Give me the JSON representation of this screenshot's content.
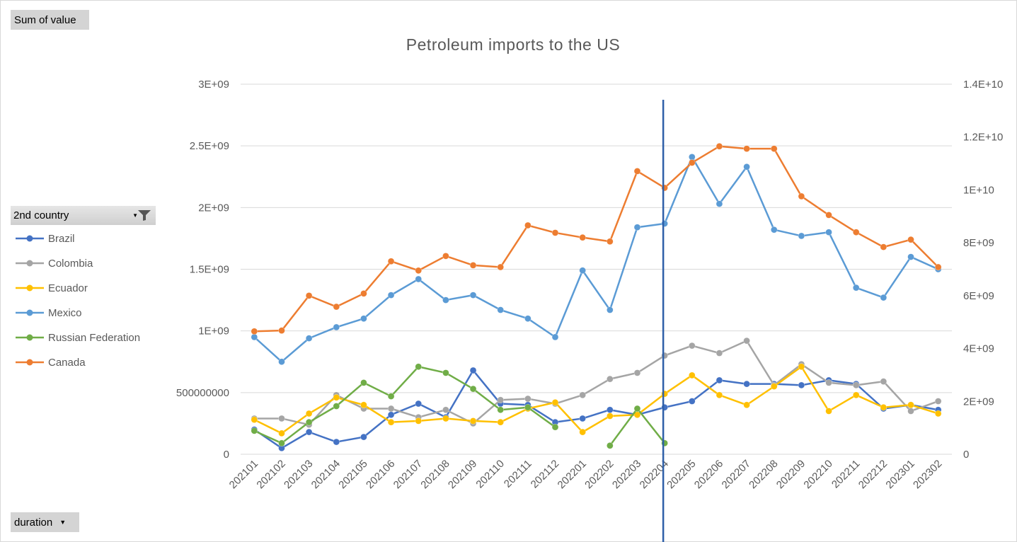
{
  "pivot": {
    "values_field": "Sum of value",
    "legend_field": "2nd country",
    "axis_field": "duration"
  },
  "icons": {
    "filter": "filter-icon",
    "dropdown": "dropdown-arrow-icon"
  },
  "chart_data": {
    "type": "line",
    "title": "Petroleum imports to the US",
    "xlabel": "",
    "ylabel": "",
    "grid": true,
    "legend_position": "left",
    "categories": [
      "202101",
      "202102",
      "202103",
      "202104",
      "202105",
      "202106",
      "202107",
      "202108",
      "202109",
      "202110",
      "202111",
      "202112",
      "202201",
      "202202",
      "202203",
      "202204",
      "202205",
      "202206",
      "202207",
      "202208",
      "202209",
      "202210",
      "202211",
      "202212",
      "202301",
      "202302"
    ],
    "y_axis": {
      "min": 0,
      "max": 3000000000,
      "ticks": [
        "0",
        "500000000",
        "1E+09",
        "1.5E+09",
        "2E+09",
        "2.5E+09",
        "3E+09"
      ]
    },
    "y2_axis": {
      "min": 0,
      "max": 14000000000,
      "ticks": [
        "0",
        "2E+09",
        "4E+09",
        "6E+09",
        "8E+09",
        "1E+10",
        "1.2E+10",
        "1.4E+10"
      ]
    },
    "vertical_marker_category": "202204",
    "series": [
      {
        "name": "Brazil",
        "color": "#4472c4",
        "axis": "primary",
        "values": [
          200000000,
          50000000,
          180000000,
          100000000,
          140000000,
          320000000,
          410000000,
          300000000,
          680000000,
          410000000,
          400000000,
          260000000,
          290000000,
          360000000,
          320000000,
          380000000,
          430000000,
          600000000,
          570000000,
          570000000,
          560000000,
          600000000,
          570000000,
          370000000,
          400000000,
          360000000
        ]
      },
      {
        "name": "Colombia",
        "color": "#a5a5a5",
        "axis": "primary",
        "values": [
          290000000,
          290000000,
          240000000,
          480000000,
          370000000,
          370000000,
          300000000,
          360000000,
          250000000,
          440000000,
          450000000,
          410000000,
          480000000,
          610000000,
          660000000,
          800000000,
          880000000,
          820000000,
          920000000,
          560000000,
          730000000,
          580000000,
          560000000,
          590000000,
          350000000,
          430000000
        ]
      },
      {
        "name": "Ecuador",
        "color": "#ffc000",
        "axis": "primary",
        "values": [
          280000000,
          170000000,
          330000000,
          460000000,
          400000000,
          260000000,
          270000000,
          290000000,
          270000000,
          260000000,
          370000000,
          420000000,
          180000000,
          310000000,
          320000000,
          490000000,
          640000000,
          480000000,
          400000000,
          550000000,
          710000000,
          350000000,
          480000000,
          380000000,
          400000000,
          330000000
        ]
      },
      {
        "name": "Mexico",
        "color": "#5b9bd5",
        "axis": "primary",
        "values": [
          950000000,
          750000000,
          940000000,
          1030000000,
          1100000000,
          1290000000,
          1420000000,
          1250000000,
          1290000000,
          1170000000,
          1100000000,
          950000000,
          1490000000,
          1170000000,
          1840000000,
          1870000000,
          2410000000,
          2030000000,
          2330000000,
          1820000000,
          1770000000,
          1800000000,
          1350000000,
          1270000000,
          1600000000,
          1500000000
        ]
      },
      {
        "name": "Russian Federation",
        "color": "#70ad47",
        "axis": "primary",
        "values": [
          190000000,
          90000000,
          260000000,
          390000000,
          580000000,
          470000000,
          710000000,
          660000000,
          530000000,
          360000000,
          380000000,
          220000000,
          null,
          70000000,
          370000000,
          90000000,
          null,
          null,
          null,
          null,
          null,
          null,
          null,
          null,
          null,
          null
        ]
      },
      {
        "name": "Canada",
        "color": "#ed7d31",
        "axis": "secondary",
        "values": [
          4650000000,
          4680000000,
          6000000000,
          5580000000,
          6080000000,
          7300000000,
          6950000000,
          7500000000,
          7150000000,
          7080000000,
          8660000000,
          8380000000,
          8200000000,
          8050000000,
          10710000000,
          10080000000,
          11030000000,
          11650000000,
          11560000000,
          11560000000,
          9760000000,
          9050000000,
          8400000000,
          7840000000,
          8120000000,
          7080000000
        ]
      }
    ]
  }
}
